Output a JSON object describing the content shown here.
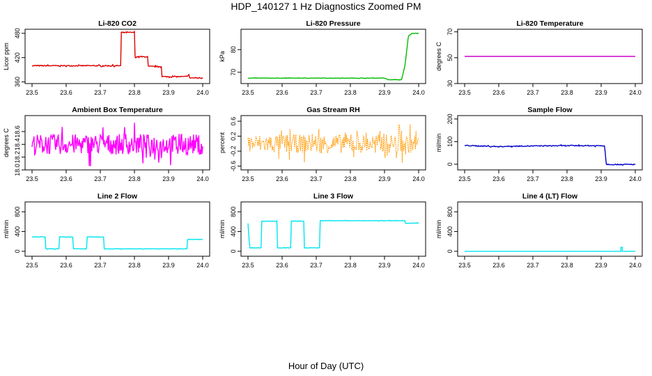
{
  "title": "HDP_140127  1 Hz Diagnostics Zoomed PM",
  "xlabel": "Hour of Day (UTC)",
  "chart_data": [
    {
      "type": "line",
      "title": "Li-820 CO2",
      "ylabel": "Licor ppm",
      "xlim": [
        23.5,
        24.0
      ],
      "ylim": [
        356,
        490
      ],
      "xticks": [
        "23.5",
        "23.6",
        "23.7",
        "23.8",
        "23.9",
        "24.0"
      ],
      "yticks": [
        "360",
        "420",
        "480"
      ],
      "color": "#dd0000",
      "noise": 1.2,
      "series": [
        {
          "x": [
            23.5,
            23.76,
            23.76,
            23.8,
            23.8,
            23.84,
            23.84,
            23.88,
            23.88,
            23.95,
            23.96,
            23.96,
            24.0
          ],
          "y": [
            400,
            400,
            482,
            482,
            422,
            422,
            398,
            398,
            373,
            373,
            378,
            370,
            370
          ]
        }
      ]
    },
    {
      "type": "line",
      "title": "Li-820 Pressure",
      "ylabel": "kPa",
      "xlim": [
        23.5,
        24.0
      ],
      "ylim": [
        65,
        89
      ],
      "xticks": [
        "23.5",
        "23.6",
        "23.7",
        "23.8",
        "23.9",
        "24.0"
      ],
      "yticks": [
        "70",
        "80"
      ],
      "color": "#00bb00",
      "noise": 0.08,
      "series": [
        {
          "x": [
            23.5,
            23.9,
            23.91,
            23.95,
            23.96,
            23.97,
            23.98,
            24.0
          ],
          "y": [
            67.4,
            67.4,
            66.7,
            66.7,
            73,
            86,
            87.2,
            87.2
          ]
        }
      ]
    },
    {
      "type": "line",
      "title": "Li-820 Temperature",
      "ylabel": "degrees C",
      "xlim": [
        23.5,
        24.0
      ],
      "ylim": [
        30,
        72
      ],
      "xticks": [
        "23.5",
        "23.6",
        "23.7",
        "23.8",
        "23.9",
        "24.0"
      ],
      "yticks": [
        "30",
        "50",
        "70"
      ],
      "color": "#cc00cc",
      "noise": 0,
      "series": [
        {
          "x": [
            23.5,
            24.0
          ],
          "y": [
            51,
            51
          ]
        }
      ]
    },
    {
      "type": "line",
      "title": "Ambient Box Temperature",
      "ylabel": "degrees C",
      "xlim": [
        23.5,
        24.0
      ],
      "ylim": [
        18.0,
        18.85
      ],
      "xticks": [
        "23.5",
        "23.6",
        "23.7",
        "23.8",
        "23.9",
        "24.0"
      ],
      "yticks": [
        "18.0",
        "18.2",
        "18.4",
        "18.6"
      ],
      "color": "#ff00ff",
      "noise": 0.16,
      "series": [
        {
          "x": [
            23.5,
            24.0
          ],
          "y": [
            18.4,
            18.4
          ]
        }
      ]
    },
    {
      "type": "line",
      "title": "Gas Stream RH",
      "ylabel": "percent",
      "xlim": [
        23.5,
        24.0
      ],
      "ylim": [
        -0.7,
        0.75
      ],
      "xticks": [
        "23.5",
        "23.6",
        "23.7",
        "23.8",
        "23.9",
        "24.0"
      ],
      "yticks": [
        "-0.6",
        "-0.2",
        "0.2",
        "0.6"
      ],
      "color": "#ff9900",
      "noise": 0.25,
      "dashed": true,
      "series": [
        {
          "x": [
            23.5,
            24.0
          ],
          "y": [
            0.0,
            0.0
          ]
        }
      ]
    },
    {
      "type": "line",
      "title": "Sample Flow",
      "ylabel": "ml/min",
      "xlim": [
        23.5,
        24.0
      ],
      "ylim": [
        -25,
        215
      ],
      "xticks": [
        "23.5",
        "23.6",
        "23.7",
        "23.8",
        "23.9",
        "24.0"
      ],
      "yticks": [
        "0",
        "100",
        "200"
      ],
      "color": "#0000cc",
      "noise": 2,
      "series": [
        {
          "x": [
            23.5,
            23.6,
            23.65,
            23.8,
            23.91,
            23.915,
            23.93,
            24.0
          ],
          "y": [
            83,
            78,
            80,
            82,
            82,
            0,
            -1,
            -1
          ]
        }
      ]
    },
    {
      "type": "line",
      "title": "Line 2 Flow",
      "ylabel": "ml/min",
      "xlim": [
        23.5,
        24.0
      ],
      "ylim": [
        -100,
        1000
      ],
      "xticks": [
        "23.5",
        "23.6",
        "23.7",
        "23.8",
        "23.9",
        "24.0"
      ],
      "yticks": [
        "0",
        "400",
        "800"
      ],
      "color": "#00e5ee",
      "noise": 4,
      "series": [
        {
          "x": [
            23.5,
            23.54,
            23.54,
            23.58,
            23.58,
            23.62,
            23.62,
            23.66,
            23.66,
            23.71,
            23.71,
            23.955,
            23.955,
            24.0
          ],
          "y": [
            290,
            290,
            50,
            50,
            290,
            290,
            50,
            50,
            290,
            290,
            50,
            50,
            240,
            240
          ]
        }
      ]
    },
    {
      "type": "line",
      "title": "Line 3 Flow",
      "ylabel": "ml/min",
      "xlim": [
        23.5,
        24.0
      ],
      "ylim": [
        -100,
        1000
      ],
      "xticks": [
        "23.5",
        "23.6",
        "23.7",
        "23.8",
        "23.9",
        "24.0"
      ],
      "yticks": [
        "0",
        "400",
        "800"
      ],
      "color": "#00e5ee",
      "noise": 4,
      "series": [
        {
          "x": [
            23.5,
            23.505,
            23.54,
            23.54,
            23.585,
            23.585,
            23.625,
            23.625,
            23.665,
            23.665,
            23.71,
            23.71,
            23.96,
            23.96,
            24.0
          ],
          "y": [
            560,
            70,
            70,
            610,
            610,
            70,
            70,
            610,
            610,
            70,
            70,
            620,
            620,
            570,
            570
          ]
        }
      ]
    },
    {
      "type": "line",
      "title": "Line 4 (LT) Flow",
      "ylabel": "ml/min",
      "xlim": [
        23.5,
        24.0
      ],
      "ylim": [
        -100,
        1000
      ],
      "xticks": [
        "23.5",
        "23.6",
        "23.7",
        "23.8",
        "23.9",
        "24.0"
      ],
      "yticks": [
        "0",
        "400",
        "800"
      ],
      "color": "#00e5ee",
      "noise": 0,
      "series": [
        {
          "x": [
            23.5,
            23.958,
            23.958,
            23.962,
            23.962,
            24.0
          ],
          "y": [
            0,
            0,
            80,
            80,
            0,
            0
          ]
        }
      ]
    }
  ]
}
